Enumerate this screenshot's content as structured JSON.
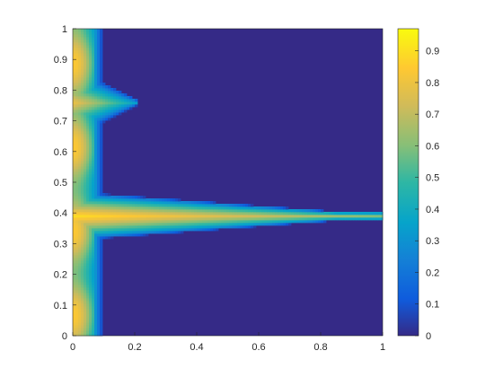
{
  "chart_data": {
    "type": "heatmap",
    "title": "",
    "xlabel": "",
    "ylabel": "",
    "xlim": [
      0,
      1
    ],
    "ylim": [
      0,
      1
    ],
    "x_ticks": [
      "0",
      "0.2",
      "0.4",
      "0.6",
      "0.8",
      "1"
    ],
    "y_ticks": [
      "0",
      "0.1",
      "0.2",
      "0.3",
      "0.4",
      "0.5",
      "0.6",
      "0.7",
      "0.8",
      "0.9",
      "1"
    ],
    "colormap": "parula",
    "colorbar": {
      "range": [
        0,
        0.97
      ],
      "ticks": [
        "0",
        "0.1",
        "0.2",
        "0.3",
        "0.4",
        "0.5",
        "0.6",
        "0.7",
        "0.8",
        "0.9"
      ],
      "colors": [
        "#352a87",
        "#0f5cdd",
        "#1481d6",
        "#06a4ca",
        "#2eb7a4",
        "#87bf77",
        "#d1bb59",
        "#fec832",
        "#f9fb0e"
      ]
    },
    "background_value": 0,
    "features": [
      {
        "name": "left-edge band",
        "x_extent": [
          0,
          0.07
        ],
        "y_extent": [
          0,
          1
        ],
        "peak_value": 0.85
      },
      {
        "name": "horizontal band",
        "y_center": 0.39,
        "x_extent": [
          0,
          1
        ],
        "peak_value": 0.9,
        "half_width_at_x0": 0.08,
        "half_width_at_x1": 0.015
      },
      {
        "name": "upper lobe",
        "y_center": 0.76,
        "x_extent": [
          0,
          0.21
        ],
        "peak_value": 0.8
      }
    ],
    "grid": false,
    "legend": "colorbar-right"
  }
}
